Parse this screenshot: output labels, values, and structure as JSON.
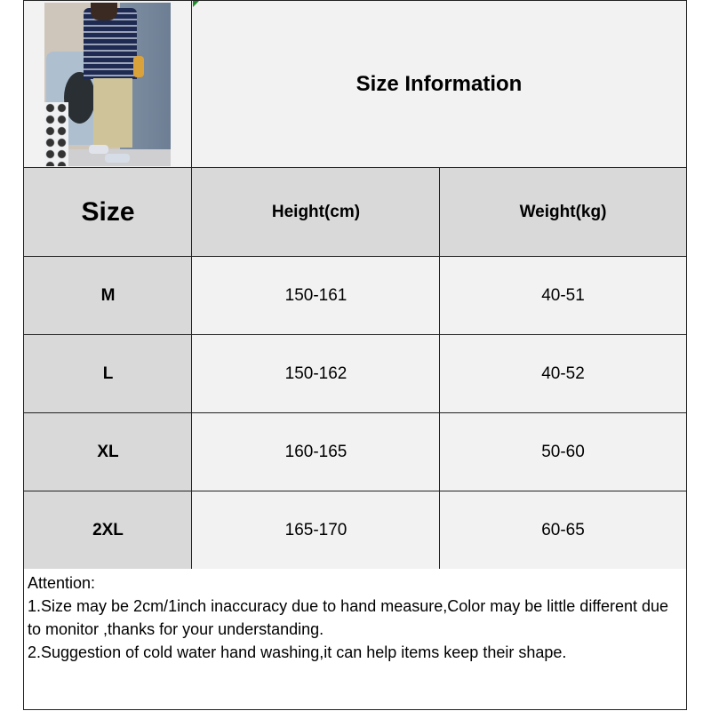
{
  "title": "Size Information",
  "table": {
    "headers": [
      "Size",
      "Height(cm)",
      "Weight(kg)"
    ],
    "rows": [
      {
        "size": "M",
        "height": "150-161",
        "weight": "40-51"
      },
      {
        "size": "L",
        "height": "150-162",
        "weight": "40-52"
      },
      {
        "size": "XL",
        "height": "160-165",
        "weight": "50-60"
      },
      {
        "size": "2XL",
        "height": "165-170",
        "weight": "60-65"
      }
    ]
  },
  "notes": {
    "heading": "Attention:",
    "lines": [
      "1.Size may be 2cm/1inch inaccuracy due to hand measure,Color may be little different due to monitor ,thanks for your understanding.",
      "2.Suggestion of cold water hand washing,it can help items keep their shape."
    ]
  },
  "colors": {
    "header_bg": "#d9d9d9",
    "cell_bg": "#f2f2f2",
    "border": "#222222"
  }
}
